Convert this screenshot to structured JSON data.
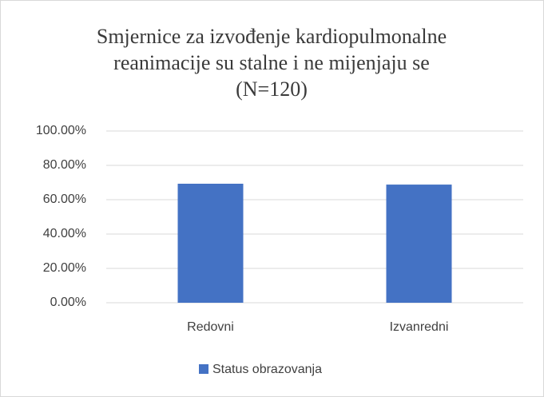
{
  "chart_data": {
    "type": "bar",
    "title": [
      "Smjernice za izvođenje kardiopulmonalne",
      "reanimacije su stalne i ne mijenjaju se",
      "(N=120)"
    ],
    "categories": [
      "Redovni",
      "Izvanredni"
    ],
    "series": [
      {
        "name": "Status obrazovanja",
        "color": "#4472c4",
        "values": [
          69.3,
          68.8
        ]
      }
    ],
    "ylim": [
      0,
      100
    ],
    "yticks": [
      {
        "value": 0,
        "label": "0.00%"
      },
      {
        "value": 20,
        "label": "20.00%"
      },
      {
        "value": 40,
        "label": "40.00%"
      },
      {
        "value": 60,
        "label": "60.00%"
      },
      {
        "value": 80,
        "label": "80.00%"
      },
      {
        "value": 100,
        "label": "100.00%"
      }
    ],
    "grid": true,
    "legend": "bottom"
  }
}
